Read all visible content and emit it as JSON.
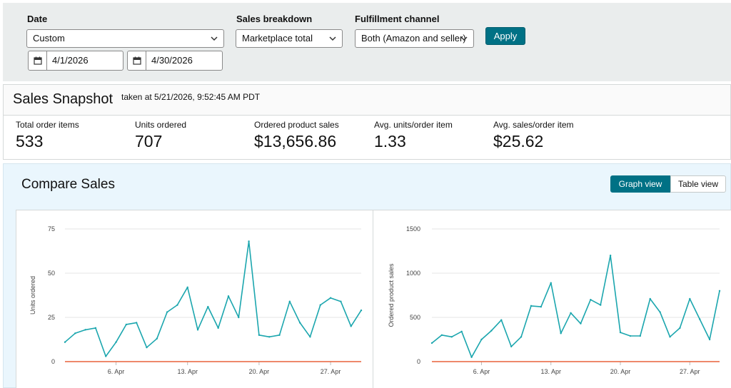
{
  "filters": {
    "date": {
      "label": "Date",
      "value": "Custom",
      "start": "4/1/2026",
      "end": "4/30/2026"
    },
    "sales_breakdown": {
      "label": "Sales breakdown",
      "value": "Marketplace total"
    },
    "fulfillment": {
      "label": "Fulfillment channel",
      "value": "Both (Amazon and seller)"
    },
    "apply_label": "Apply"
  },
  "snapshot": {
    "title": "Sales Snapshot",
    "taken_at": "taken at 5/21/2026, 9:52:45 AM PDT",
    "metrics": [
      {
        "label": "Total order items",
        "value": "533"
      },
      {
        "label": "Units ordered",
        "value": "707"
      },
      {
        "label": "Ordered product sales",
        "value": "$13,656.86"
      },
      {
        "label": "Avg. units/order item",
        "value": "1.33"
      },
      {
        "label": "Avg. sales/order item",
        "value": "$25.62"
      }
    ]
  },
  "compare": {
    "title": "Compare Sales",
    "graph_view_label": "Graph view",
    "table_view_label": "Table view"
  },
  "colors": {
    "accent": "#007185",
    "series": "#1ba6ae",
    "baseline": "#e8623a"
  },
  "chart_data": [
    {
      "type": "line",
      "title": "",
      "xlabel": "",
      "ylabel": "Units ordered",
      "ylim": [
        0,
        75
      ],
      "yticks": [
        0,
        25,
        50,
        75
      ],
      "x_ticks": [
        "6. Apr",
        "13. Apr",
        "20. Apr",
        "27. Apr"
      ],
      "x_tick_days": [
        6,
        13,
        20,
        27
      ],
      "x": [
        1,
        2,
        3,
        4,
        5,
        6,
        7,
        8,
        9,
        10,
        11,
        12,
        13,
        14,
        15,
        16,
        17,
        18,
        19,
        20,
        21,
        22,
        23,
        24,
        25,
        26,
        27,
        28,
        29,
        30
      ],
      "series": [
        {
          "values": [
            11,
            16,
            18,
            19,
            3,
            11,
            21,
            22,
            8,
            13,
            28,
            32,
            42,
            18,
            31,
            19,
            37,
            25,
            68,
            15,
            14,
            15,
            34,
            22,
            14,
            32,
            36,
            34,
            20,
            29
          ]
        },
        {
          "values": [
            0,
            0,
            0,
            0,
            0,
            0,
            0,
            0,
            0,
            0,
            0,
            0,
            0,
            0,
            0,
            0,
            0,
            0,
            0,
            0,
            0,
            0,
            0,
            0,
            0,
            0,
            0,
            0,
            0,
            0
          ]
        }
      ]
    },
    {
      "type": "line",
      "title": "",
      "xlabel": "",
      "ylabel": "Ordered product sales",
      "ylim": [
        0,
        1500
      ],
      "yticks": [
        0,
        500,
        1000,
        1500
      ],
      "x_ticks": [
        "6. Apr",
        "13. Apr",
        "20. Apr",
        "27. Apr"
      ],
      "x_tick_days": [
        6,
        13,
        20,
        27
      ],
      "x": [
        1,
        2,
        3,
        4,
        5,
        6,
        7,
        8,
        9,
        10,
        11,
        12,
        13,
        14,
        15,
        16,
        17,
        18,
        19,
        20,
        21,
        22,
        23,
        24,
        25,
        26,
        27,
        28,
        29,
        30
      ],
      "series": [
        {
          "values": [
            210,
            300,
            280,
            340,
            50,
            250,
            350,
            470,
            170,
            280,
            630,
            620,
            890,
            320,
            550,
            430,
            700,
            640,
            1200,
            330,
            290,
            290,
            710,
            560,
            280,
            380,
            710,
            480,
            250,
            800
          ]
        },
        {
          "values": [
            0,
            0,
            0,
            0,
            0,
            0,
            0,
            0,
            0,
            0,
            0,
            0,
            0,
            0,
            0,
            0,
            0,
            0,
            0,
            0,
            0,
            0,
            0,
            0,
            0,
            0,
            0,
            0,
            0,
            0
          ]
        }
      ]
    }
  ]
}
